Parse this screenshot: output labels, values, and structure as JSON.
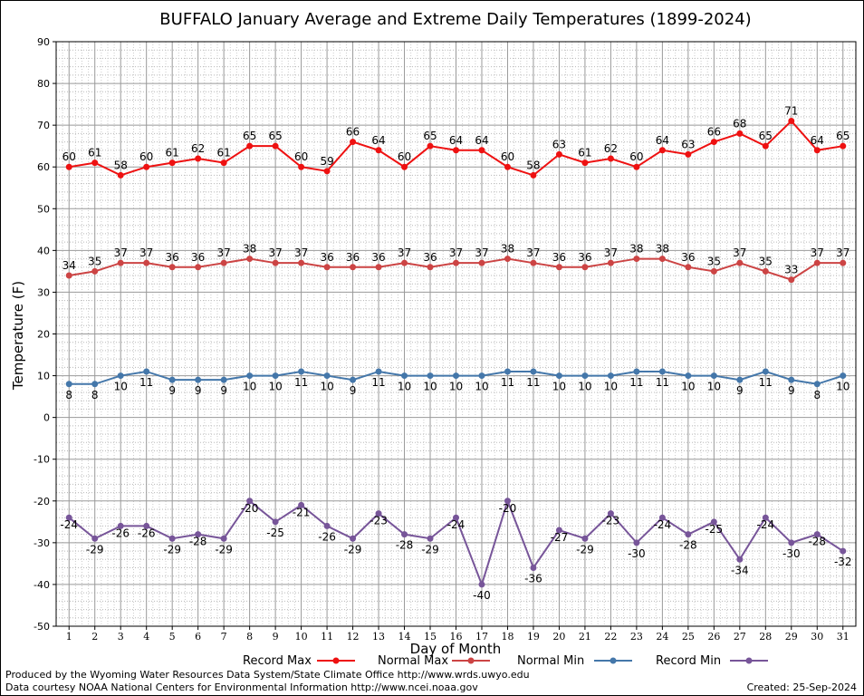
{
  "chart_data": {
    "type": "line",
    "title": "BUFFALO January Average and Extreme Daily Temperatures (1899-2024)",
    "xlabel": "Day of Month",
    "ylabel": "Temperature (F)",
    "x": [
      1,
      2,
      3,
      4,
      5,
      6,
      7,
      8,
      9,
      10,
      11,
      12,
      13,
      14,
      15,
      16,
      17,
      18,
      19,
      20,
      21,
      22,
      23,
      24,
      25,
      26,
      27,
      28,
      29,
      30,
      31
    ],
    "ylim": [
      -50,
      90
    ],
    "yticks": [
      -50,
      -40,
      -30,
      -20,
      -10,
      0,
      10,
      20,
      30,
      40,
      50,
      60,
      70,
      80,
      90
    ],
    "grid": true,
    "legend_position": "bottom",
    "series": [
      {
        "name": "Record Max",
        "color": "#ee1111",
        "values": [
          60,
          61,
          58,
          60,
          61,
          62,
          61,
          65,
          65,
          60,
          59,
          66,
          64,
          60,
          65,
          64,
          64,
          60,
          58,
          63,
          61,
          62,
          60,
          64,
          63,
          66,
          68,
          65,
          71,
          64,
          65
        ]
      },
      {
        "name": "Normal Max",
        "color": "#cc4444",
        "values": [
          34,
          35,
          37,
          37,
          36,
          36,
          37,
          38,
          37,
          37,
          36,
          36,
          36,
          37,
          36,
          37,
          37,
          38,
          37,
          36,
          36,
          37,
          38,
          38,
          36,
          35,
          37,
          35,
          33,
          37,
          37
        ]
      },
      {
        "name": "Normal Min",
        "color": "#4477aa",
        "values": [
          8,
          8,
          10,
          11,
          9,
          9,
          9,
          10,
          10,
          11,
          10,
          9,
          11,
          10,
          10,
          10,
          10,
          11,
          11,
          10,
          10,
          10,
          11,
          11,
          10,
          10,
          9,
          11,
          9,
          8,
          10
        ]
      },
      {
        "name": "Record Min",
        "color": "#775599",
        "values": [
          -24,
          -29,
          -26,
          -26,
          -29,
          -28,
          -29,
          -20,
          -25,
          -21,
          -26,
          -29,
          -23,
          -28,
          -29,
          -24,
          -40,
          -20,
          -36,
          -27,
          -29,
          -23,
          -30,
          -24,
          -28,
          -25,
          -34,
          -24,
          -30,
          -28,
          -32
        ]
      }
    ]
  },
  "footer": {
    "produced_by": "Produced by the Wyoming Water Resources Data System/State Climate Office http://www.wrds.uwyo.edu",
    "data_courtesy": "Data courtesy NOAA National Centers for Environmental Information http://www.ncei.noaa.gov",
    "created": "Created:  25-Sep-2024"
  }
}
